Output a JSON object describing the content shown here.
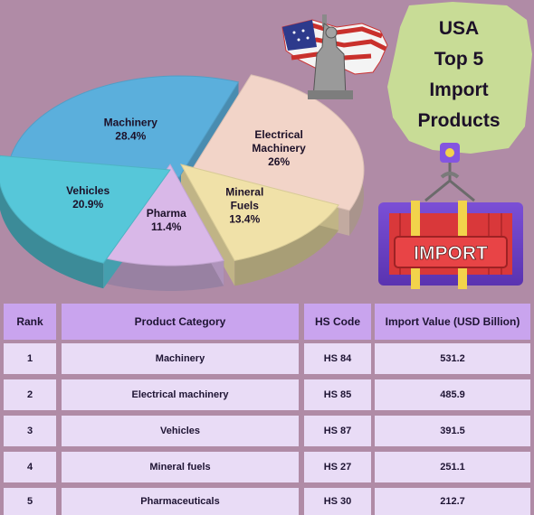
{
  "title": {
    "lines": [
      "USA",
      "Top 5",
      "Import",
      "Products"
    ]
  },
  "badge_label": "IMPORT",
  "chart_data": {
    "type": "pie",
    "slices": [
      {
        "name": "Machinery",
        "pct_label": "28.4%",
        "value": 28.4,
        "label_lines": [
          "Machinery"
        ],
        "color": "#5bafdc"
      },
      {
        "name": "Electrical Machinery",
        "pct_label": "26%",
        "value": 26,
        "label_lines": [
          "Electrical",
          "Machinery"
        ],
        "color": "#f2d4c8"
      },
      {
        "name": "Mineral Fuels",
        "pct_label": "13.4%",
        "value": 13.4,
        "label_lines": [
          "Mineral",
          "Fuels"
        ],
        "color": "#f0e1a8"
      },
      {
        "name": "Pharma",
        "pct_label": "11.4%",
        "value": 11.4,
        "label_lines": [
          "Pharma"
        ],
        "color": "#d9b8e8"
      },
      {
        "name": "Vehicles",
        "pct_label": "20.9%",
        "value": 20.9,
        "label_lines": [
          "Vehicles"
        ],
        "color": "#56c7d9"
      }
    ]
  },
  "table": {
    "headers": [
      "Rank",
      "Product Category",
      "HS Code",
      "Import Value (USD Billion)"
    ],
    "rows": [
      [
        "1",
        "Machinery",
        "HS 84",
        "531.2"
      ],
      [
        "2",
        "Electrical machinery",
        "HS 85",
        "485.9"
      ],
      [
        "3",
        "Vehicles",
        "HS 87",
        "391.5"
      ],
      [
        "4",
        "Mineral fuels",
        "HS 27",
        "251.1"
      ],
      [
        "5",
        "Pharmaceuticals",
        "HS 30",
        "212.7"
      ]
    ]
  }
}
